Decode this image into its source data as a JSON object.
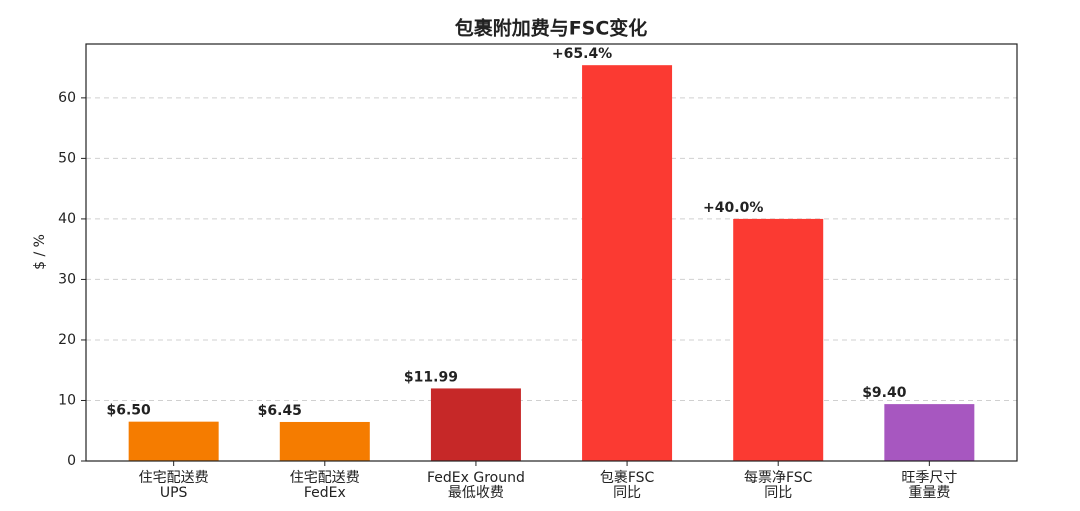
{
  "chart_data": {
    "type": "bar",
    "title": "包裹附加费与FSC变化",
    "y_label": "$ / %",
    "categories": [
      "住宅配送费\nUPS",
      "住宅配送费\nFedEx",
      "FedEx Ground\n最低收费",
      "包裹FSC\n同比",
      "每票净FSC\n同比",
      "旺季尺寸\n重量费"
    ],
    "values": [
      6.5,
      6.45,
      11.99,
      65.4,
      40.0,
      9.4
    ],
    "value_labels": [
      "$6.50",
      "$6.45",
      "$11.99",
      "+65.4%",
      "+40.0%",
      "$9.40"
    ],
    "colors": [
      "#f57c00",
      "#f57c00",
      "#c62828",
      "#fb3a32",
      "#fb3a32",
      "#a757c0"
    ],
    "ylim": [
      0,
      68.9
    ],
    "yticks": [
      0,
      10,
      20,
      30,
      40,
      50,
      60
    ],
    "grid": true
  }
}
